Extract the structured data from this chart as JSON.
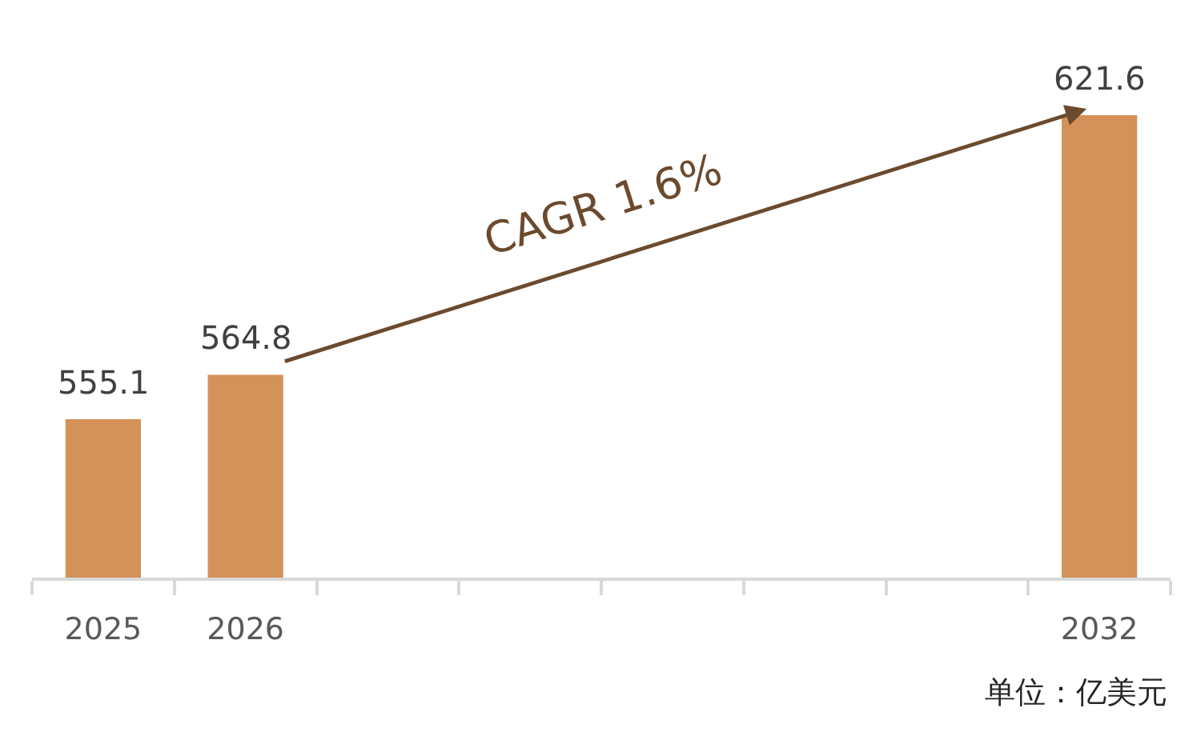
{
  "chart_data": {
    "type": "bar",
    "categories": [
      "2025",
      "2026",
      null,
      null,
      null,
      null,
      null,
      "2032"
    ],
    "values": [
      555.1,
      564.8,
      null,
      null,
      null,
      null,
      null,
      621.6
    ],
    "color": "#d4915a",
    "data_labels": true,
    "annotations": [
      "CAGR 1.6%",
      "单位：亿美元"
    ]
  }
}
